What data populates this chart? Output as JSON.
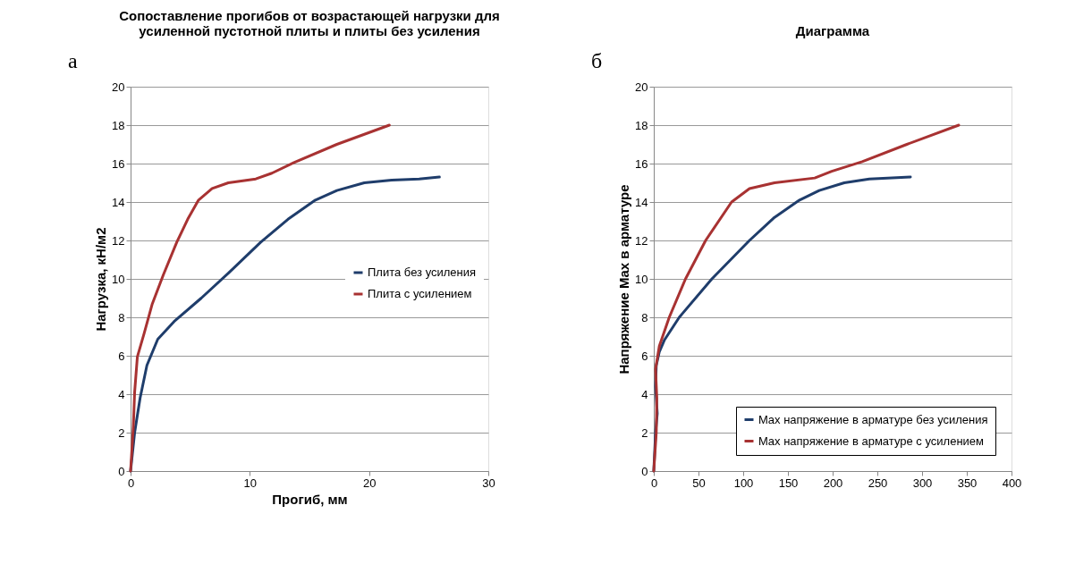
{
  "chart_data": [
    {
      "type": "line",
      "title": [
        "Сопоставление прогибов от возрастающей нагрузки для",
        "усиленной пустотной плиты и плиты без усиления"
      ],
      "xlabel": "Прогиб, мм",
      "ylabel": "Нагрузка, кН/м2",
      "annotations": [
        "а"
      ],
      "xlim": [
        0,
        30
      ],
      "xticks": [
        0,
        10,
        20,
        30
      ],
      "ylim": [
        0,
        20
      ],
      "yticks": [
        0,
        2,
        4,
        6,
        8,
        10,
        12,
        14,
        16,
        18,
        20
      ],
      "grid": "y",
      "legend": "right",
      "line_style": "solid",
      "marker": "none",
      "series": [
        {
          "name": "Плита без усиления",
          "color": "#1f3d6b",
          "x": [
            0,
            0.34,
            0.8,
            1.37,
            2.28,
            3.65,
            5.93,
            8.2,
            10.9,
            13.2,
            15.5,
            17.3,
            19.6,
            21.9,
            24.2,
            25.9
          ],
          "values": [
            0,
            2.0,
            3.8,
            5.5,
            6.86,
            7.78,
            9.0,
            10.3,
            11.9,
            13.1,
            14.1,
            14.6,
            15.0,
            15.14,
            15.2,
            15.3
          ]
        },
        {
          "name": "Плита с усилением",
          "color": "#a83232",
          "x": [
            0,
            0.23,
            0.34,
            0.57,
            1.14,
            1.82,
            2.74,
            3.87,
            4.79,
            5.7,
            6.84,
            8.2,
            10.5,
            11.85,
            13.7,
            17.3,
            21.7
          ],
          "values": [
            0,
            2.3,
            4.1,
            5.95,
            7.17,
            8.7,
            10.2,
            11.9,
            13.1,
            14.1,
            14.7,
            15.0,
            15.2,
            15.5,
            16.05,
            17.0,
            18.0
          ]
        }
      ]
    },
    {
      "type": "line",
      "title": "Диаграмма",
      "ylabel": "Напряжение Max в арматуре",
      "annotations": [
        "б"
      ],
      "xlim": [
        0,
        400
      ],
      "xticks": [
        0,
        50,
        100,
        150,
        200,
        250,
        300,
        350,
        400
      ],
      "ylim": [
        0,
        20
      ],
      "yticks": [
        0,
        2,
        4,
        6,
        8,
        10,
        12,
        14,
        16,
        18,
        20
      ],
      "grid": "y",
      "legend": "bottom right",
      "line_style": "solid",
      "marker": "none",
      "series": [
        {
          "name": "Max напряжение в арматуре без усиления",
          "color": "#1f3d6b",
          "x": [
            0,
            2,
            3.9,
            2,
            2.8,
            6.2,
            11.7,
            28.5,
            65,
            107,
            135,
            163,
            185,
            213,
            241,
            287
          ],
          "values": [
            0,
            2.0,
            3.0,
            4.4,
            5.5,
            6.2,
            6.8,
            8.0,
            10.0,
            12.0,
            13.2,
            14.1,
            14.6,
            15.0,
            15.2,
            15.3
          ]
        },
        {
          "name": "Max напряжение в арматуре с усилением",
          "color": "#a83232",
          "x": [
            0,
            2.8,
            3.4,
            2,
            6.2,
            17.3,
            35.5,
            58,
            87,
            107,
            135,
            180,
            199,
            233,
            283,
            341
          ],
          "values": [
            0,
            2.0,
            3.8,
            5.3,
            6.5,
            8.0,
            10.0,
            12.0,
            14.0,
            14.7,
            15.0,
            15.25,
            15.6,
            16.1,
            17.0,
            18.0
          ]
        }
      ]
    }
  ]
}
